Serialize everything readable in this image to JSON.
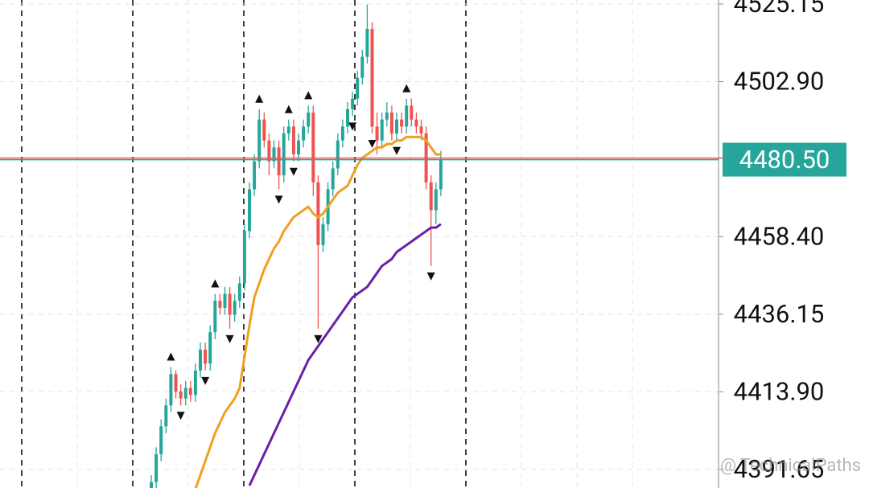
{
  "chart_data": {
    "type": "candlestick",
    "ylim": [
      4386.3,
      4526.3
    ],
    "yticks": [
      4391.65,
      {
        "value": 4413.9,
        "label": "4413.90"
      },
      4436.15,
      {
        "value": 4458.4,
        "label": "4458.40"
      },
      {
        "value": 4502.9,
        "label": "4502.90"
      },
      4525.15
    ],
    "grid": true,
    "up_color": "#26a69a",
    "down_color": "#ef5350",
    "open": [
      4384,
      4388,
      4396,
      4404,
      4410,
      4419,
      4414,
      4412,
      4415,
      4413,
      4420,
      4426,
      4422,
      4431,
      4440,
      4438,
      4442,
      4436,
      4440,
      4445,
      4460,
      4472,
      4480,
      4492,
      4486,
      4480,
      4484,
      4476,
      4488,
      4490,
      4482,
      4486,
      4490,
      4494,
      4474,
      4456,
      4462,
      4472,
      4478,
      4486,
      4490,
      4495,
      4498,
      4504,
      4510,
      4518,
      4490,
      4486,
      4492,
      4494,
      4488,
      4492,
      4490,
      4496,
      4492,
      4490,
      4488,
      4474,
      4466,
      4472
    ],
    "high": [
      4390,
      4398,
      4406,
      4412,
      4421,
      4420,
      4416,
      4417,
      4417,
      4422,
      4428,
      4428,
      4433,
      4442,
      4442,
      4444,
      4444,
      4442,
      4447,
      4462,
      4474,
      4482,
      4495,
      4494,
      4488,
      4486,
      4486,
      4490,
      4492,
      4492,
      4488,
      4492,
      4496,
      4496,
      4476,
      4464,
      4474,
      4480,
      4488,
      4492,
      4497,
      4500,
      4506,
      4512,
      4525,
      4520,
      4494,
      4494,
      4497,
      4496,
      4494,
      4494,
      4498,
      4498,
      4494,
      4492,
      4490,
      4476,
      4474,
      4483
    ],
    "low": [
      4382,
      4386,
      4394,
      4402,
      4408,
      4412,
      4410,
      4410,
      4411,
      4411,
      4418,
      4420,
      4420,
      4429,
      4436,
      4436,
      4432,
      4434,
      4438,
      4443,
      4458,
      4470,
      4478,
      4484,
      4476,
      4478,
      4472,
      4474,
      4486,
      4480,
      4480,
      4484,
      4488,
      4470,
      4432,
      4454,
      4460,
      4470,
      4476,
      4484,
      4488,
      4493,
      4496,
      4502,
      4508,
      4488,
      4482,
      4484,
      4490,
      4486,
      4486,
      4488,
      4488,
      4490,
      4488,
      4486,
      4472,
      4450,
      4462,
      4470
    ],
    "close": [
      4388,
      4396,
      4404,
      4410,
      4419,
      4414,
      4412,
      4415,
      4413,
      4420,
      4426,
      4422,
      4431,
      4440,
      4438,
      4442,
      4436,
      4440,
      4445,
      4460,
      4472,
      4480,
      4492,
      4486,
      4480,
      4484,
      4476,
      4488,
      4490,
      4482,
      4486,
      4490,
      4494,
      4474,
      4456,
      4462,
      4472,
      4478,
      4486,
      4490,
      4495,
      4498,
      4504,
      4510,
      4518,
      4490,
      4486,
      4492,
      4494,
      4488,
      4492,
      4490,
      4496,
      4492,
      4490,
      4488,
      4474,
      4466,
      4472,
      4480.5
    ],
    "series": [
      {
        "color": "#f0a020",
        "values": [
          null,
          null,
          null,
          null,
          null,
          null,
          null,
          null,
          null,
          4386,
          4390,
          4394,
          4398,
          4402,
          4405,
          4408,
          4410,
          4412,
          4415,
          4424,
          4433,
          4441,
          4445,
          4449,
          4452,
          4455,
          4457,
          4460,
          4462,
          4464,
          4465,
          4466,
          4467,
          4465,
          4464,
          4465,
          4467,
          4469,
          4471,
          4472,
          4473,
          4476,
          4479,
          4481,
          4482,
          4483,
          4484,
          4484,
          4485,
          4485,
          4486,
          4486,
          4487,
          4487,
          4487,
          4487,
          4486,
          4484,
          4482,
          4482
        ]
      },
      {
        "color": "#6a1fa8",
        "values": [
          null,
          null,
          null,
          null,
          null,
          null,
          null,
          null,
          null,
          null,
          null,
          null,
          null,
          null,
          null,
          null,
          null,
          null,
          null,
          null,
          4387,
          4390,
          4393,
          4396,
          4399,
          4402,
          4405,
          4408,
          4411,
          4414,
          4417,
          4420,
          4423,
          4425,
          4427,
          4429,
          4431,
          4433,
          4435,
          4437,
          4439,
          4441,
          4442,
          4443,
          4444,
          4446,
          4448,
          4450,
          4451,
          4452,
          4454,
          4455,
          4456,
          4457,
          4458,
          4459,
          4460,
          4461,
          4461,
          4462
        ]
      }
    ],
    "fractals_up": [
      4,
      13,
      22,
      28,
      32,
      44,
      52
    ],
    "fractals_down": [
      6,
      11,
      16,
      26,
      29,
      34,
      41,
      45,
      50,
      57
    ],
    "last_price": {
      "value": 4480.5,
      "label": "4480.50"
    },
    "watermark": "@ TechnicalPaths"
  }
}
